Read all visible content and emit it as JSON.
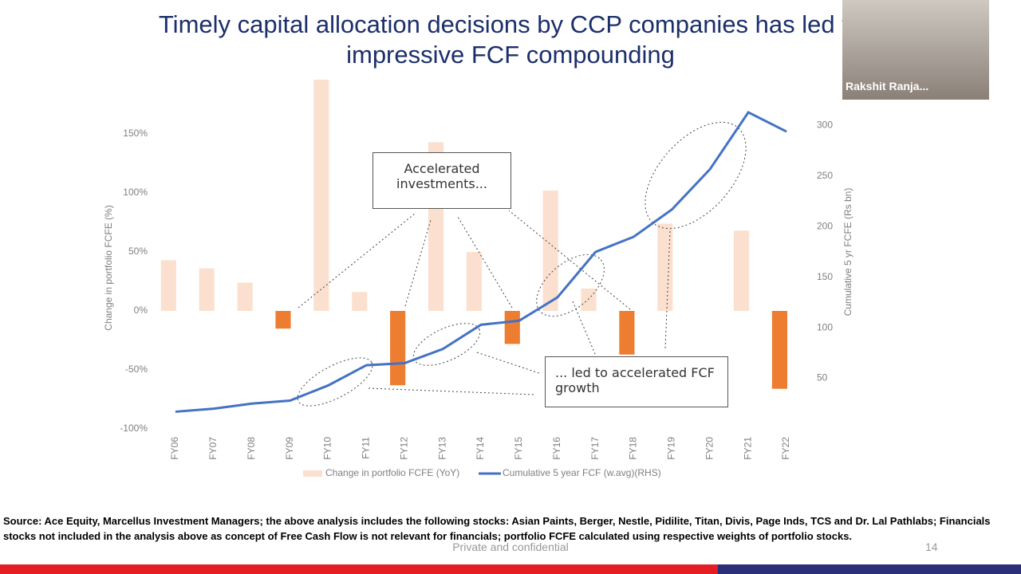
{
  "chart_data": {
    "type": "bar_line",
    "title": "Timely capital allocation decisions by CCP companies has led to impressive FCF compounding",
    "y_label": "Change in portfolio FCFE (%)",
    "y2_label": "Cumulative 5 yr FCFE (Rs bn)",
    "categories": [
      "FY06",
      "FY07",
      "FY08",
      "FY09",
      "FY10",
      "FY11",
      "FY12",
      "FY13",
      "FY14",
      "FY15",
      "FY16",
      "FY17",
      "FY18",
      "FY19",
      "FY20",
      "FY21",
      "FY22"
    ],
    "series": [
      {
        "name": "Change in portfolio FCFE (YoY)",
        "type": "bar",
        "color": "#fbe0cf",
        "negative_color": "#ed7d31",
        "values": [
          43,
          36,
          24,
          -15,
          196,
          16,
          -63,
          143,
          50,
          -28,
          102,
          19,
          -37,
          74,
          null,
          68,
          -66
        ]
      },
      {
        "name": "Cumulative 5 year FCF (w.avg)(RHS)",
        "type": "line",
        "color": "#4472c4",
        "axis": "y2",
        "values": [
          17,
          20,
          25,
          28,
          43,
          63,
          65,
          79,
          103,
          107,
          130,
          175,
          190,
          217,
          257,
          313,
          294
        ]
      }
    ],
    "ylim": [
      -100,
      200
    ],
    "yticks": [
      {
        "value": -100,
        "label": "-100%"
      },
      {
        "value": -50,
        "label": "-50%"
      },
      {
        "value": 0,
        "label": "0%"
      },
      {
        "value": 50,
        "label": "50%"
      },
      {
        "value": 100,
        "label": "100%"
      },
      {
        "value": 150,
        "label": "150%"
      }
    ],
    "y2lim": [
      0,
      350
    ],
    "y2ticks": [
      50,
      100,
      150,
      200,
      250,
      300
    ],
    "annotations": [
      "Accelerated investments...",
      "... led to accelerated FCF growth"
    ]
  },
  "source_note": "Source: Ace Equity, Marcellus Investment Managers; the above analysis includes the following stocks: Asian Paints, Berger, Nestle, Pidilite, Titan, Divis, Page Inds, TCS and Dr. Lal Pathlabs; Financials stocks not included in the analysis above as concept of Free Cash Flow is not relevant for financials; portfolio FCFE calculated using respective weights of portfolio stocks.",
  "footer": "Private and confidential",
  "page_number": "14",
  "participant_name": "Rakshit Ranja..."
}
